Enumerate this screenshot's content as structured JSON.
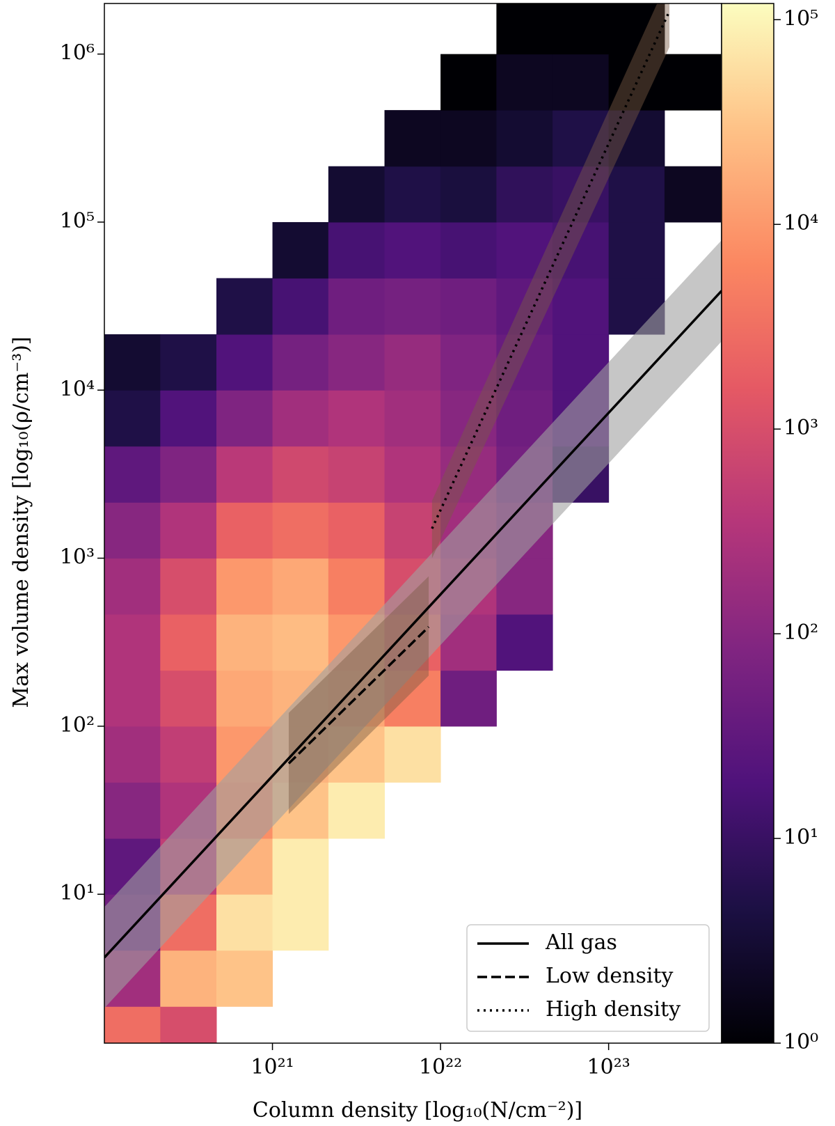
{
  "chart_data": {
    "type": "heatmap",
    "xlabel": "Column density [log₁₀(N/cm⁻²)]",
    "ylabel": "Max volume density [log₁₀(ρ/cm⁻³)]",
    "xscale": "log",
    "yscale": "log",
    "xlim": [
      1e+20,
      4.7e+23
    ],
    "ylim": [
      1.3,
      2000000
    ],
    "xticks": [
      {
        "value": 1e+21,
        "label": "10²¹"
      },
      {
        "value": 1e+22,
        "label": "10²²"
      },
      {
        "value": 1e+23,
        "label": "10²³"
      }
    ],
    "yticks": [
      {
        "value": 10,
        "label": "10¹"
      },
      {
        "value": 100,
        "label": "10²"
      },
      {
        "value": 1000,
        "label": "10³"
      },
      {
        "value": 10000,
        "label": "10⁴"
      },
      {
        "value": 100000,
        "label": "10⁵"
      },
      {
        "value": 1000000,
        "label": "10⁶"
      }
    ],
    "colormap": "magma",
    "clim": [
      1,
      120000
    ],
    "cticks": [
      {
        "value": 1,
        "label": "10⁰"
      },
      {
        "value": 10,
        "label": "10¹"
      },
      {
        "value": 100,
        "label": "10²"
      },
      {
        "value": 1000,
        "label": "10³"
      },
      {
        "value": 10000,
        "label": "10⁴"
      },
      {
        "value": 100000,
        "label": "10⁵"
      }
    ],
    "x_bins": [
      1e+20,
      2.15e+20,
      4.64e+20,
      1e+21,
      2.15e+21,
      4.64e+21,
      1e+22,
      2.15e+22,
      4.64e+22,
      1e+23,
      2.15e+23,
      4.64e+23
    ],
    "y_bins": [
      1,
      2.15,
      4.64,
      10,
      21.5,
      46.4,
      100,
      215,
      464,
      1000,
      2150,
      4640,
      10000,
      21500,
      46400,
      100000,
      215000,
      464000,
      1000000,
      2150000
    ],
    "z": [
      [
        3000,
        1000,
        null,
        null,
        null,
        null,
        null,
        null,
        null,
        null,
        null
      ],
      [
        200,
        20000,
        30000,
        null,
        null,
        null,
        null,
        null,
        null,
        null,
        null
      ],
      [
        50,
        3000,
        60000,
        80000,
        null,
        null,
        null,
        null,
        null,
        null,
        null
      ],
      [
        30,
        500,
        20000,
        80000,
        null,
        null,
        null,
        null,
        null,
        null,
        null
      ],
      [
        100,
        300,
        8000,
        30000,
        80000,
        null,
        null,
        null,
        null,
        null,
        null
      ],
      [
        200,
        500,
        10000,
        20000,
        30000,
        60000,
        null,
        null,
        null,
        null,
        null
      ],
      [
        300,
        1000,
        15000,
        20000,
        15000,
        5000,
        50,
        null,
        null,
        null,
        null
      ],
      [
        300,
        2000,
        20000,
        25000,
        10000,
        2000,
        200,
        20,
        null,
        null,
        null
      ],
      [
        200,
        1000,
        10000,
        15000,
        5000,
        1000,
        300,
        100,
        null,
        null,
        null
      ],
      [
        100,
        300,
        2000,
        3000,
        2000,
        600,
        200,
        100,
        null,
        null,
        null
      ],
      [
        30,
        80,
        400,
        800,
        600,
        300,
        150,
        60,
        10,
        null,
        null
      ],
      [
        5,
        20,
        80,
        200,
        300,
        200,
        100,
        50,
        20,
        null,
        null
      ],
      [
        3,
        5,
        20,
        60,
        100,
        150,
        80,
        40,
        20,
        null,
        null
      ],
      [
        null,
        null,
        5,
        15,
        50,
        60,
        50,
        30,
        20,
        5,
        null
      ],
      [
        null,
        null,
        null,
        3,
        15,
        20,
        15,
        20,
        15,
        5,
        null
      ],
      [
        null,
        null,
        null,
        null,
        3,
        5,
        4,
        8,
        10,
        5,
        2
      ],
      [
        null,
        null,
        null,
        null,
        null,
        2,
        2,
        3,
        5,
        3,
        null
      ],
      [
        null,
        null,
        null,
        null,
        null,
        null,
        1,
        2,
        2,
        1,
        1
      ],
      [
        null,
        null,
        null,
        null,
        null,
        null,
        null,
        1,
        1,
        1,
        null
      ]
    ],
    "series": [
      {
        "name": "All gas",
        "color": "#000000",
        "dash": "solid",
        "band_color": "#a0a0a0",
        "x": [
          1e+20,
          4.7e+23
        ],
        "values": [
          4.2,
          39000
        ],
        "lower": [
          2.1,
          19500
        ],
        "upper": [
          8.4,
          78000
        ]
      },
      {
        "name": "Low density",
        "color": "#000000",
        "dash": "dashed",
        "band_color": "#7a5a45",
        "x": [
          1.25e+21,
          8.5e+21
        ],
        "values": [
          60,
          390
        ],
        "lower": [
          30,
          200
        ],
        "upper": [
          120,
          780
        ]
      },
      {
        "name": "High density",
        "color": "#000000",
        "dash": "dotted",
        "band_color": "#7a5a45",
        "x": [
          8.9e+21,
          2.3e+23
        ],
        "values": [
          1500,
          1800000
        ],
        "lower": [
          1000,
          1100000
        ],
        "upper": [
          2200,
          2900000
        ]
      }
    ],
    "legend": "lower right"
  }
}
